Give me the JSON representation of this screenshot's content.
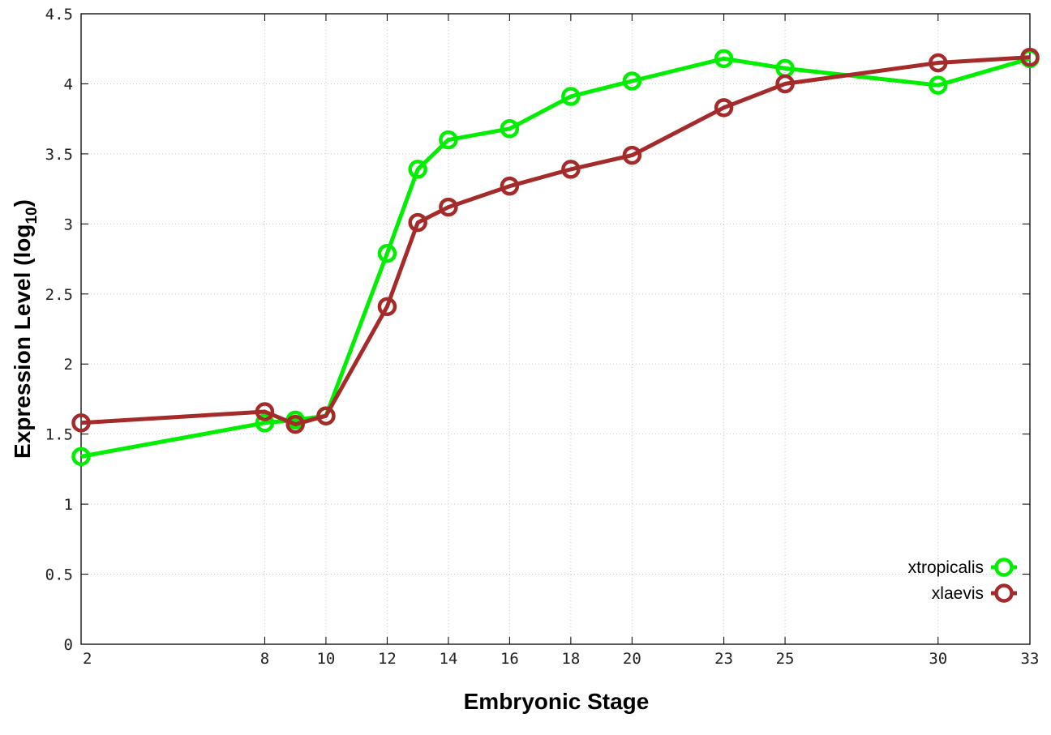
{
  "chart_data": {
    "type": "line",
    "xlabel": "Embryonic Stage",
    "ylabel": "Expression Level (log",
    "ylabel_subscript": "10",
    "ylabel_close": ")",
    "x_ticks": [
      2,
      8,
      10,
      12,
      14,
      16,
      18,
      20,
      23,
      25,
      30,
      33
    ],
    "x_tick_labels": [
      "2",
      "8",
      "10",
      "12",
      "14",
      "16",
      "18",
      "20",
      "23",
      "25",
      "30",
      "33"
    ],
    "y_ticks": [
      0,
      0.5,
      1,
      1.5,
      2,
      2.5,
      3,
      3.5,
      4,
      4.5
    ],
    "y_tick_labels": [
      "0",
      "0.5",
      "1",
      "1.5",
      "2",
      "2.5",
      "3",
      "3.5",
      "4",
      "4.5"
    ],
    "xlim": [
      2,
      33
    ],
    "ylim": [
      0,
      4.5
    ],
    "grid": true,
    "legend_position": "bottom-right",
    "series": [
      {
        "name": "xtropicalis",
        "color": "#00ee00",
        "x": [
          2,
          8,
          9,
          10,
          12,
          13,
          14,
          16,
          18,
          20,
          23,
          25,
          30,
          33
        ],
        "y": [
          1.34,
          1.58,
          1.6,
          1.63,
          2.79,
          3.39,
          3.6,
          3.68,
          3.91,
          4.02,
          4.18,
          4.11,
          3.99,
          4.18
        ]
      },
      {
        "name": "xlaevis",
        "color": "#a52a2a",
        "x": [
          2,
          8,
          9,
          10,
          12,
          13,
          14,
          16,
          18,
          20,
          23,
          25,
          30,
          33
        ],
        "y": [
          1.58,
          1.66,
          1.57,
          1.63,
          2.41,
          3.01,
          3.12,
          3.27,
          3.39,
          3.49,
          3.83,
          4.0,
          4.15,
          4.19
        ]
      }
    ]
  }
}
